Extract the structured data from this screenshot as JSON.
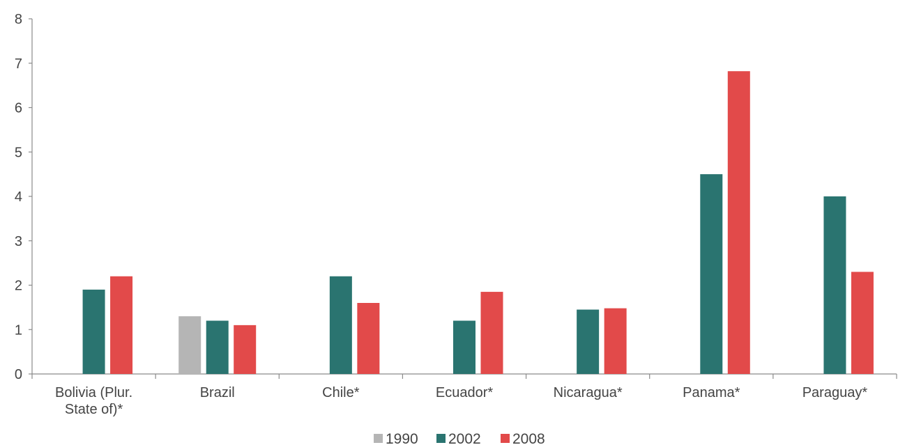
{
  "chart_data": {
    "type": "bar",
    "title": "",
    "xlabel": "",
    "ylabel": "",
    "ylim": [
      0,
      8
    ],
    "yticks": [
      0,
      1,
      2,
      3,
      4,
      5,
      6,
      7,
      8
    ],
    "grid": false,
    "legend_position": "bottom",
    "categories": [
      [
        "Bolivia (Plur.",
        "State of)*"
      ],
      [
        "Brazil"
      ],
      [
        "Chile*"
      ],
      [
        "Ecuador*"
      ],
      [
        "Nicaragua*"
      ],
      [
        "Panama*"
      ],
      [
        "Paraguay*"
      ]
    ],
    "series": [
      {
        "name": "1990",
        "color": "#b5b5b5",
        "values": [
          null,
          1.3,
          null,
          null,
          null,
          null,
          null
        ]
      },
      {
        "name": "2002",
        "color": "#2a7470",
        "values": [
          1.9,
          1.2,
          2.2,
          1.2,
          1.45,
          4.5,
          4.0
        ]
      },
      {
        "name": "2008",
        "color": "#e24a4a",
        "values": [
          2.2,
          1.1,
          1.6,
          1.85,
          1.48,
          6.82,
          2.3
        ]
      }
    ]
  }
}
